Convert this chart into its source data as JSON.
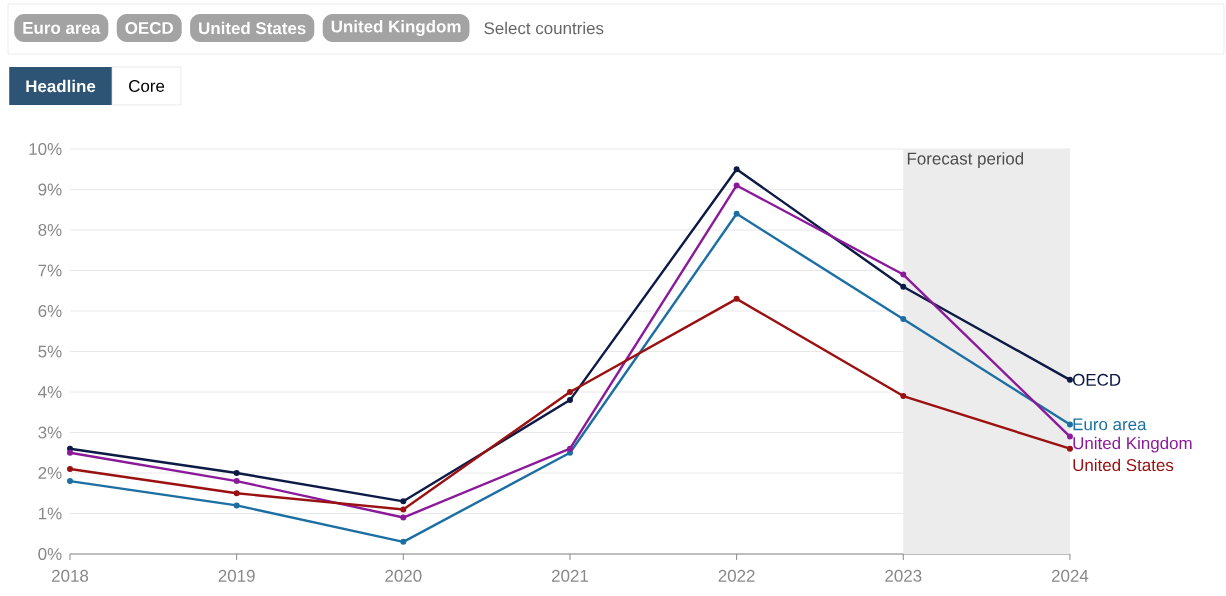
{
  "chart_data": {
    "type": "line",
    "x": [
      2018,
      2019,
      2020,
      2021,
      2022,
      2023,
      2024
    ],
    "xlim": [
      2018,
      2024
    ],
    "xticks": [
      2018,
      2019,
      2020,
      2021,
      2022,
      2023,
      2024
    ],
    "ylim": [
      0,
      10
    ],
    "yticks": [
      {
        "value": 0,
        "label": "0%"
      },
      {
        "value": 1,
        "label": "1%"
      },
      {
        "value": 2,
        "label": "2%"
      },
      {
        "value": 3,
        "label": "3%"
      },
      {
        "value": 4,
        "label": "4%"
      },
      {
        "value": 5,
        "label": "5%"
      },
      {
        "value": 6,
        "label": "6%"
      },
      {
        "value": 7,
        "label": "7%"
      },
      {
        "value": 8,
        "label": "8%"
      },
      {
        "value": 9,
        "label": "9%"
      },
      {
        "value": 10,
        "label": "10%"
      }
    ],
    "grid": "y",
    "marker": "circle",
    "line_style": "solid",
    "bands": [
      {
        "axis": "x",
        "from": 2023,
        "to": 2024,
        "label": "Forecast period",
        "color": "#ececec"
      }
    ],
    "annotations": [
      "Euro area",
      "OECD",
      "United States",
      "United Kingdom",
      "Select countries",
      "Headline",
      "Core"
    ],
    "series": [
      {
        "name": "OECD",
        "color": "#0c1a45",
        "values": [
          2.6,
          2.0,
          1.3,
          3.8,
          9.5,
          6.6,
          4.3
        ]
      },
      {
        "name": "Euro area",
        "color": "#1c6fa3",
        "values": [
          1.8,
          1.2,
          0.3,
          2.5,
          8.4,
          5.8,
          3.2
        ]
      },
      {
        "name": "United Kingdom",
        "color": "#8b1a9a",
        "values": [
          2.5,
          1.8,
          0.9,
          2.6,
          9.1,
          6.9,
          2.9
        ]
      },
      {
        "name": "United States",
        "color": "#9b1111",
        "values": [
          2.1,
          1.5,
          1.1,
          4.0,
          6.3,
          3.9,
          2.6
        ]
      }
    ]
  }
}
